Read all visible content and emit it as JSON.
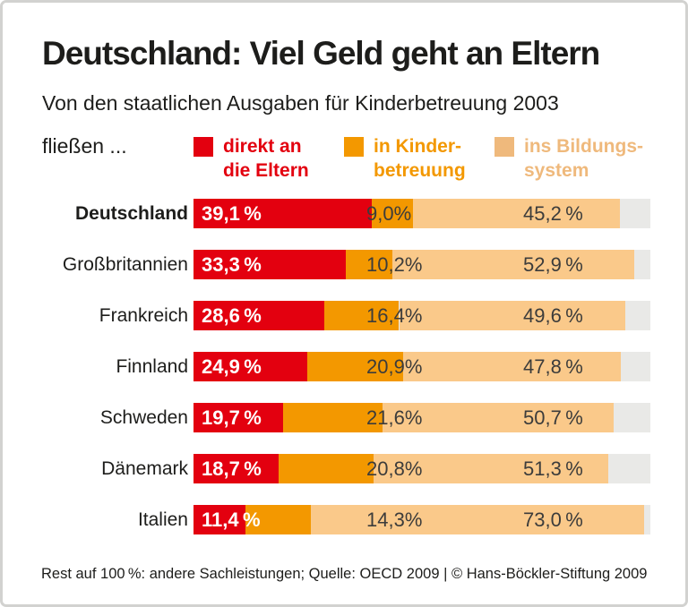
{
  "header": {
    "title": "Deutschland: Viel Geld geht an Eltern",
    "subtitle": "Von den staatlichen Ausgaben für Kinderbetreuung 2003",
    "subtitle2": "fließen ..."
  },
  "legend": {
    "items": [
      {
        "line1": "direkt an",
        "line2": "die Eltern",
        "color": "#e3000f"
      },
      {
        "line1": "in Kinder-",
        "line2": "betreuung",
        "color": "#f39800"
      },
      {
        "line1": "ins Bildungs-",
        "line2": "system",
        "color": "#efb97c"
      }
    ]
  },
  "chart_data": {
    "type": "bar",
    "orientation": "horizontal",
    "stacked": true,
    "unit": "percent",
    "xlim": [
      0,
      100
    ],
    "title": "Deutschland: Viel Geld geht an Eltern",
    "subtitle": "Von den staatlichen Ausgaben für Kinderbetreuung 2003 fließen ...",
    "categories": [
      "Deutschland",
      "Großbritannien",
      "Frankreich",
      "Finnland",
      "Schweden",
      "Dänemark",
      "Italien"
    ],
    "emphasized_category": "Deutschland",
    "series": [
      {
        "name": "direkt an die Eltern",
        "color": "#e3000f",
        "values": [
          39.1,
          33.3,
          28.6,
          24.9,
          19.7,
          18.7,
          11.4
        ]
      },
      {
        "name": "in Kinderbetreuung",
        "color": "#f39800",
        "values": [
          9.0,
          10.2,
          16.4,
          20.9,
          21.6,
          20.8,
          14.3
        ]
      },
      {
        "name": "ins Bildungssystem",
        "color": "#fac98a",
        "values": [
          45.2,
          52.9,
          49.6,
          47.8,
          50.7,
          51.3,
          73.0
        ]
      }
    ],
    "value_labels": [
      [
        "39,1 %",
        "9,0%",
        "45,2 %"
      ],
      [
        "33,3 %",
        "10,2%",
        "52,9 %"
      ],
      [
        "28,6 %",
        "16,4%",
        "49,6 %"
      ],
      [
        "24,9 %",
        "20,9%",
        "47,8 %"
      ],
      [
        "19,7 %",
        "21,6%",
        "50,7 %"
      ],
      [
        "18,7 %",
        "20,8%",
        "51,3 %"
      ],
      [
        "11,4 %",
        "14,3%",
        "73,0 %"
      ]
    ],
    "remainder": {
      "color": "#e9e9e7",
      "note": "Rest auf 100 %: andere Sachleistungen"
    }
  },
  "footer": {
    "text": "Rest auf 100 %: andere Sachleistungen; Quelle: OECD 2009 | © Hans-Böckler-Stiftung 2009"
  }
}
